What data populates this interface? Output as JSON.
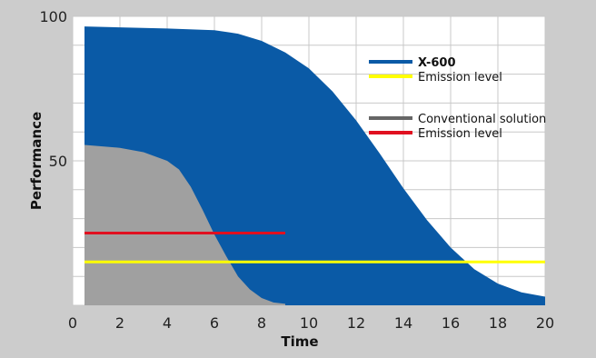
{
  "chart_data": {
    "type": "area",
    "title": "",
    "xlabel": "Time",
    "ylabel": "Performance",
    "xlim": [
      0,
      20
    ],
    "ylim": [
      0,
      100
    ],
    "x_ticks": [
      "0",
      "2",
      "4",
      "6",
      "8",
      "10",
      "12",
      "14",
      "16",
      "18",
      "20"
    ],
    "y_ticks": [
      "50",
      "100"
    ],
    "grid": true,
    "legend_position": "top-right",
    "series": [
      {
        "name": "X-600",
        "kind": "area",
        "color": "#0a5aa6",
        "x": [
          0.5,
          2,
          4,
          6,
          7,
          8,
          9,
          10,
          11,
          12,
          13,
          14,
          15,
          16,
          17,
          18,
          19,
          20
        ],
        "y": [
          96.5,
          96.2,
          95.8,
          95.2,
          94,
          91.5,
          87.5,
          82,
          74,
          64,
          52.5,
          40.5,
          29.5,
          20,
          12.5,
          7.5,
          4.5,
          3
        ]
      },
      {
        "name": "Emission level",
        "kind": "line",
        "color": "#ffff00",
        "x": [
          0.5,
          20
        ],
        "y": [
          15,
          15
        ]
      },
      {
        "name": "Conventional solution",
        "kind": "area",
        "color": "#a0a0a0",
        "x": [
          0.5,
          2,
          3,
          4,
          4.5,
          5,
          5.5,
          6,
          6.5,
          7,
          7.5,
          8,
          8.5,
          9
        ],
        "y": [
          55.5,
          54.5,
          53,
          50,
          47,
          41,
          33,
          24.5,
          17,
          10,
          5.5,
          2.5,
          1,
          0.5
        ]
      },
      {
        "name": "Emission level",
        "kind": "line",
        "color": "#e01020",
        "x": [
          0.5,
          9
        ],
        "y": [
          25,
          25
        ]
      }
    ],
    "legend": [
      {
        "label": "X-600",
        "color": "#0a5aa6",
        "bold": true
      },
      {
        "label": "Emission level",
        "color": "#ffff00",
        "bold": false
      },
      {
        "label": "Conventional solution",
        "color": "#666666",
        "bold": false
      },
      {
        "label": "Emission level",
        "color": "#e01020",
        "bold": false
      }
    ]
  }
}
